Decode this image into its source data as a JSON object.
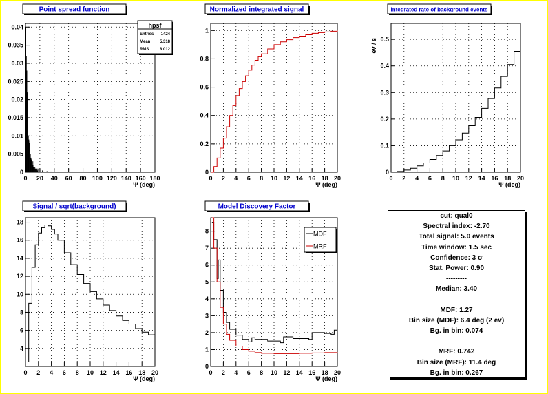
{
  "colors": {
    "title": "#0000cc",
    "canvas_border": "#ffff00",
    "red": "#cc0000"
  },
  "chart_data": [
    {
      "id": "psf",
      "type": "histogram",
      "title": "Point spread function",
      "xlabel": "Ψ (deg)",
      "ylabel": "",
      "xlim": [
        0,
        180
      ],
      "ylim": [
        0,
        0.041
      ],
      "xticks": [
        0,
        20,
        40,
        60,
        80,
        100,
        120,
        140,
        160,
        180
      ],
      "yticks": [
        0,
        0.005,
        0.01,
        0.015,
        0.02,
        0.025,
        0.03,
        0.035,
        0.04
      ],
      "ytick_labels": [
        "0",
        "0.005",
        "0.01",
        "0.015",
        "0.02",
        "0.025",
        "0.03",
        "0.035",
        "0.04"
      ],
      "grid": true,
      "stats": {
        "name": "hpsf",
        "rows": [
          {
            "label": "Entries",
            "value": "1424"
          },
          {
            "label": "Mean",
            "value": "5.318"
          },
          {
            "label": "RMS",
            "value": "8.012"
          }
        ]
      },
      "series": [
        {
          "color": "#000000",
          "bin_width": 0.7,
          "x": [
            0.0,
            0.7,
            1.4,
            2.1,
            2.8,
            3.5,
            4.2,
            4.9,
            5.6,
            6.3,
            7.0,
            7.7,
            8.4,
            9.1,
            9.8,
            10.5,
            11.2,
            11.9,
            12.6,
            13.3,
            14.0,
            14.7,
            15.4,
            16.1,
            16.8,
            18.2,
            19.6,
            21.0,
            23.1,
            25.2,
            29.4,
            35.0
          ],
          "y": [
            0.04,
            0.032,
            0.028,
            0.022,
            0.018,
            0.01,
            0.009,
            0.008,
            0.0085,
            0.005,
            0.004,
            0.0035,
            0.004,
            0.002,
            0.003,
            0.0015,
            0.002,
            0.001,
            0.0015,
            0.001,
            0.001,
            0.0005,
            0.001,
            0.0005,
            0.001,
            0.0005,
            0.001,
            0.0005,
            0.0005,
            0.0002,
            0.0003,
            0.0002
          ]
        }
      ]
    },
    {
      "id": "nis",
      "type": "line",
      "title": "Normalized integrated signal",
      "xlabel": "Ψ (deg)",
      "ylabel": "",
      "xlim": [
        0,
        20
      ],
      "ylim": [
        0,
        1.05
      ],
      "xticks": [
        0,
        2,
        4,
        6,
        8,
        10,
        12,
        14,
        16,
        18,
        20
      ],
      "yticks": [
        0,
        0.2,
        0.4,
        0.6,
        0.8,
        1
      ],
      "ytick_labels": [
        "0",
        "0.2",
        "0.4",
        "0.6",
        "0.8",
        "1"
      ],
      "grid": true,
      "series": [
        {
          "color": "#cc0000",
          "step": true,
          "x": [
            0,
            0.5,
            1,
            1.5,
            2,
            2.5,
            3,
            3.5,
            4,
            4.5,
            5,
            5.5,
            6,
            6.5,
            7,
            7.5,
            8,
            9,
            10,
            11,
            12,
            13,
            14,
            15,
            16,
            17,
            18,
            19,
            20
          ],
          "y": [
            0,
            0.04,
            0.1,
            0.17,
            0.24,
            0.32,
            0.4,
            0.47,
            0.54,
            0.59,
            0.64,
            0.68,
            0.72,
            0.755,
            0.79,
            0.815,
            0.835,
            0.87,
            0.9,
            0.92,
            0.935,
            0.95,
            0.96,
            0.97,
            0.98,
            0.985,
            0.99,
            0.995,
            1.0
          ]
        }
      ]
    },
    {
      "id": "bg",
      "type": "line",
      "title": "Integrated rate of background events",
      "xlabel": "Ψ (deg)",
      "ylabel": "ev / s",
      "xlim": [
        0,
        20
      ],
      "ylim": [
        0,
        0.56
      ],
      "xticks": [
        0,
        2,
        4,
        6,
        8,
        10,
        12,
        14,
        16,
        18,
        20
      ],
      "yticks": [
        0,
        0.1,
        0.2,
        0.3,
        0.4,
        0.5
      ],
      "ytick_labels": [
        "0",
        "0.1",
        "0.2",
        "0.3",
        "0.4",
        "0.5"
      ],
      "grid": true,
      "series": [
        {
          "color": "#000000",
          "step": true,
          "x": [
            0,
            1,
            2,
            3,
            4,
            5,
            6,
            7,
            8,
            9,
            10,
            11,
            12,
            13,
            14,
            15,
            16,
            17,
            18,
            19,
            20
          ],
          "y": [
            0,
            0.003,
            0.008,
            0.015,
            0.024,
            0.035,
            0.048,
            0.063,
            0.08,
            0.1,
            0.122,
            0.147,
            0.175,
            0.206,
            0.24,
            0.277,
            0.317,
            0.36,
            0.405,
            0.455,
            0.53
          ]
        }
      ]
    },
    {
      "id": "snr",
      "type": "line",
      "title": "Signal / sqrt(background)",
      "xlabel": "Ψ (deg)",
      "ylabel": "",
      "xlim": [
        0,
        20
      ],
      "ylim": [
        2,
        18.5
      ],
      "xticks": [
        0,
        2,
        4,
        6,
        8,
        10,
        12,
        14,
        16,
        18,
        20
      ],
      "yticks": [
        4,
        6,
        8,
        10,
        12,
        14,
        16,
        18
      ],
      "ytick_labels": [
        "4",
        "6",
        "8",
        "10",
        "12",
        "14",
        "16",
        "18"
      ],
      "grid": true,
      "series": [
        {
          "color": "#000000",
          "step": true,
          "x": [
            0.1,
            0.5,
            1,
            1.5,
            2,
            2.5,
            3,
            3.5,
            4,
            4.5,
            5,
            6,
            7,
            8,
            9,
            10,
            11,
            12,
            13,
            14,
            15,
            16,
            17,
            18,
            19,
            20
          ],
          "y": [
            2.5,
            9,
            13,
            15.5,
            16.8,
            17.4,
            17.7,
            17.6,
            17.2,
            16.7,
            16.0,
            14.6,
            13.3,
            12.2,
            11.2,
            10.3,
            9.5,
            8.8,
            8.2,
            7.6,
            7.1,
            6.7,
            6.2,
            5.8,
            5.5,
            5.2
          ]
        }
      ]
    },
    {
      "id": "mdf",
      "type": "line",
      "title": "Model Discovery Factor",
      "xlabel": "Ψ (deg)",
      "ylabel": "",
      "xlim": [
        0,
        20
      ],
      "ylim": [
        0,
        8.8
      ],
      "xticks": [
        0,
        2,
        4,
        6,
        8,
        10,
        12,
        14,
        16,
        18,
        20
      ],
      "yticks": [
        0,
        1,
        2,
        3,
        4,
        5,
        6,
        7,
        8
      ],
      "ytick_labels": [
        "0",
        "1",
        "2",
        "3",
        "4",
        "5",
        "6",
        "7",
        "8"
      ],
      "grid": true,
      "legend": {
        "position": "top-right",
        "entries": [
          "MDF",
          "MRF"
        ]
      },
      "series": [
        {
          "name": "MDF",
          "color": "#000000",
          "step": true,
          "x": [
            0.2,
            0.5,
            1,
            1.2,
            1.5,
            2,
            2.5,
            3,
            4,
            5,
            6,
            6.5,
            7,
            9,
            11,
            11.5,
            13,
            15.5,
            16,
            18,
            19,
            19.5,
            20
          ],
          "y": [
            8.5,
            7.5,
            5.2,
            6.3,
            4.5,
            3.2,
            2.6,
            2.2,
            1.85,
            1.6,
            1.45,
            1.7,
            1.6,
            1.5,
            1.4,
            1.75,
            1.65,
            1.6,
            2.0,
            1.95,
            1.9,
            2.15,
            2.1
          ]
        },
        {
          "name": "MRF",
          "color": "#cc0000",
          "step": true,
          "x": [
            0.2,
            0.5,
            1,
            1.5,
            2,
            2.5,
            3,
            4,
            5,
            6,
            7,
            8,
            10,
            12,
            14,
            16,
            18,
            20
          ],
          "y": [
            8.8,
            7.0,
            5.0,
            3.5,
            2.5,
            1.9,
            1.55,
            1.2,
            1.0,
            0.9,
            0.82,
            0.78,
            0.76,
            0.76,
            0.78,
            0.8,
            0.82,
            0.84
          ]
        }
      ]
    }
  ],
  "info_box": {
    "lines": [
      "cut: qual0",
      "Spectral index: -2.70",
      "Total signal: 5.0 events",
      "Time window: 1.5 sec",
      "Confidence: 3 σ",
      "Stat. Power: 0.90",
      "---------",
      "Median: 3.40",
      "",
      "MDF: 1.27",
      "Bin size (MDF): 6.4 deg (2 ev)",
      "Bg. in bin: 0.074",
      "",
      "MRF: 0.742",
      "Bin size (MRF): 11.4 deg",
      "Bg. in bin: 0.267"
    ]
  }
}
